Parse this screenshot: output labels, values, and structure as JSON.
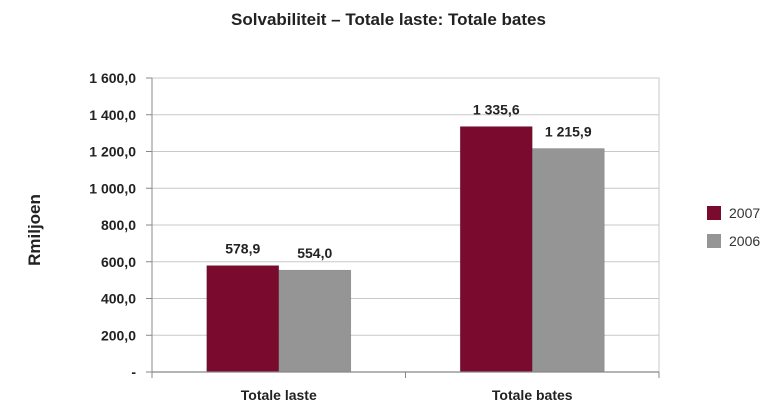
{
  "chart_data": {
    "type": "bar",
    "title": "Solvabiliteit – Totale laste: Totale bates",
    "ylabel": "Rmiljoen",
    "xlabel": "",
    "categories": [
      "Totale laste",
      "Totale bates"
    ],
    "series": [
      {
        "name": "2007",
        "color": "#7a0a2e",
        "values": [
          578.9,
          1335.6
        ],
        "labels": [
          "578,9",
          "1 335,6"
        ]
      },
      {
        "name": "2006",
        "color": "#959595",
        "values": [
          554.0,
          1215.9
        ],
        "labels": [
          "554,0",
          "1 215,9"
        ]
      }
    ],
    "ylim": [
      0,
      1600
    ],
    "yticks": [
      0,
      200,
      400,
      600,
      800,
      1000,
      1200,
      1400,
      1600
    ],
    "ytick_labels": [
      "-",
      "200,0",
      "400,0",
      "600,0",
      "800,0",
      "1 000,0",
      "1 200,0",
      "1 400,0",
      "1 600,0"
    ],
    "grid": true,
    "legend_position": "right"
  }
}
